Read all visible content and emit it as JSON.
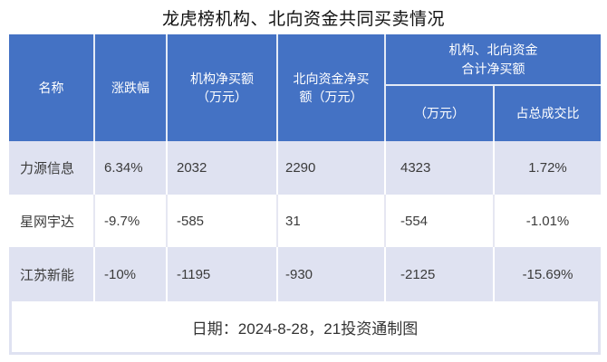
{
  "title": "龙虎榜机构、北向资金共同买卖情况",
  "header": {
    "name": "名称",
    "change": "涨跌幅",
    "inst_lines": [
      "机构净买额",
      "（万元）"
    ],
    "north_lines": [
      "北向资金净买",
      "额（万元）"
    ],
    "combo_lines": [
      "机构、北向资金",
      "合计净买额"
    ],
    "combo_unit": "（万元）",
    "combo_ratio": "占总成交比"
  },
  "rows": [
    {
      "name": "力源信息",
      "change": "6.34%",
      "inst": "2032",
      "north": "2290",
      "combo": "4323",
      "ratio": "1.72%"
    },
    {
      "name": "星网宇达",
      "change": "-9.7%",
      "inst": "-585",
      "north": "31",
      "combo": "-554",
      "ratio": "-1.01%"
    },
    {
      "name": "江苏新能",
      "change": "-10%",
      "inst": "-1195",
      "north": "-930",
      "combo": "-2125",
      "ratio": "-15.69%"
    }
  ],
  "footer": {
    "note": "日期：2024-8-28，21投资通制图"
  },
  "colors": {
    "header_bg": "#4472c4",
    "band_bg": "#dfe2f1",
    "row_bg": "#ffffff",
    "header_text": "#ffffff",
    "body_text": "#3b3b3b",
    "title_text": "#111111"
  },
  "chart_data": {
    "type": "table",
    "title": "龙虎榜机构、北向资金共同买卖情况",
    "columns": [
      "名称",
      "涨跌幅",
      "机构净买额（万元）",
      "北向资金净买额（万元）",
      "机构、北向资金合计净买额（万元）",
      "机构、北向资金合计净买额占总成交比"
    ],
    "rows": [
      [
        "力源信息",
        "6.34%",
        2032,
        2290,
        4323,
        "1.72%"
      ],
      [
        "星网宇达",
        "-9.7%",
        -585,
        31,
        -554,
        "-1.01%"
      ],
      [
        "江苏新能",
        "-10%",
        -1195,
        -930,
        -2125,
        "-15.69%"
      ]
    ],
    "note": "日期：2024-8-28，21投资通制图"
  }
}
